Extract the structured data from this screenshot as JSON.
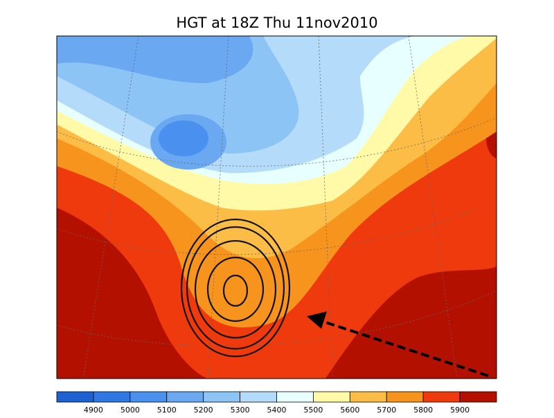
{
  "title": "HGT at 18Z Thu 11nov2010",
  "colorbar": {
    "colors": [
      "#1e62d2",
      "#2f78e4",
      "#4a90ee",
      "#6aa8f2",
      "#8cc4f6",
      "#b4dcfa",
      "#e8ffff",
      "#fffaa8",
      "#fbbd45",
      "#f7941d",
      "#ee3a0c",
      "#b41000"
    ],
    "labels": [
      4900,
      5000,
      5100,
      5200,
      5300,
      5400,
      5500,
      5600,
      5700,
      5800,
      5900
    ]
  }
}
